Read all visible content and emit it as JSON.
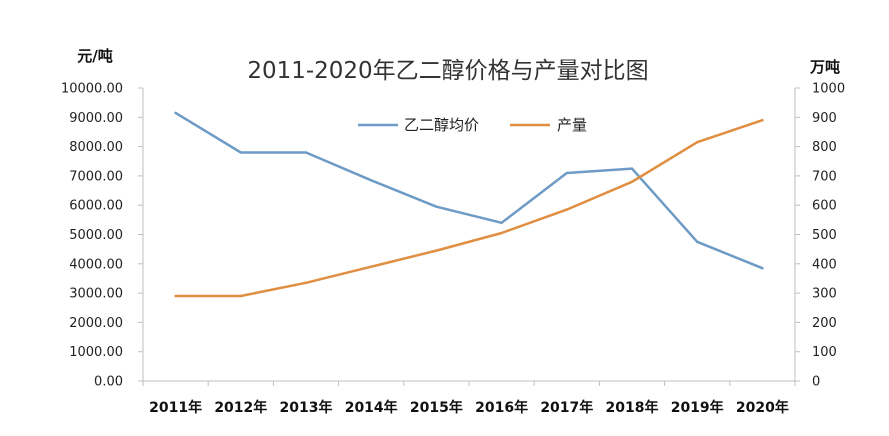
{
  "chart_data": {
    "type": "line",
    "title": "2011-2020年乙二醇价格与产量对比图",
    "y_left_unit": "元/吨",
    "y_right_unit": "万吨",
    "categories": [
      "2011年",
      "2012年",
      "2013年",
      "2014年",
      "2015年",
      "2016年",
      "2017年",
      "2018年",
      "2019年",
      "2020年"
    ],
    "y_left": {
      "ylim": [
        0,
        10000
      ],
      "ticks": [
        "0.00",
        "1000.00",
        "2000.00",
        "3000.00",
        "4000.00",
        "5000.00",
        "6000.00",
        "7000.00",
        "8000.00",
        "9000.00",
        "10000.00"
      ]
    },
    "y_right": {
      "ylim": [
        0,
        1000
      ],
      "ticks": [
        "0",
        "100",
        "200",
        "300",
        "400",
        "500",
        "600",
        "700",
        "800",
        "900",
        "1000"
      ]
    },
    "series": [
      {
        "name": "乙二醇均价",
        "axis": "left",
        "color": "#6e9bc6",
        "values": [
          9150,
          7800,
          7800,
          6850,
          5950,
          5400,
          7100,
          7250,
          4750,
          3850
        ]
      },
      {
        "name": "产量",
        "axis": "right",
        "color": "#e08f42",
        "values": [
          290,
          290,
          335,
          390,
          445,
          505,
          585,
          680,
          815,
          890
        ]
      }
    ],
    "grid": false,
    "legend_position": "top-center"
  }
}
